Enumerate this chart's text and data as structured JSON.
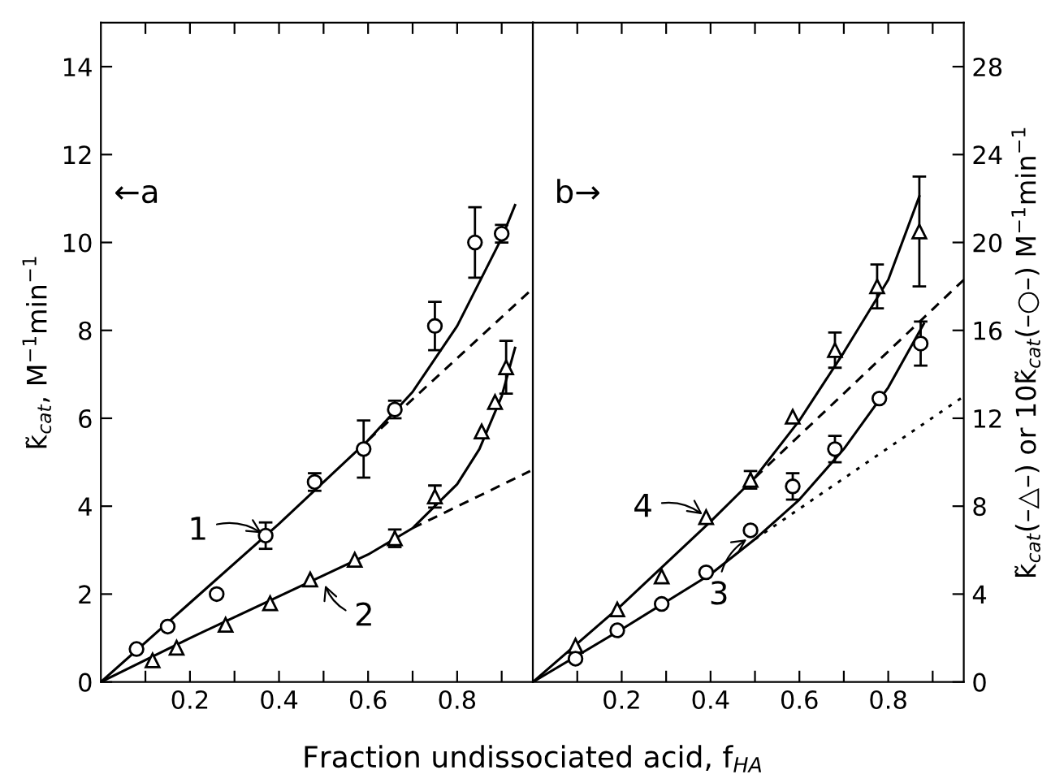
{
  "chart_data": [
    {
      "type": "scatter",
      "xlabel": "Fraction undissociated acid, f$_{HA}$",
      "ylabel": "k̃$_{cat}$, M$^{−1}$min$^{−1}$",
      "xlim": [
        0,
        0.97
      ],
      "ylim": [
        0,
        15
      ],
      "xticks": [
        {
          "value": 0.1,
          "label": null
        },
        0.2,
        {
          "value": 0.3,
          "label": null
        },
        0.4,
        {
          "value": 0.5,
          "label": null
        },
        0.6,
        {
          "value": 0.7,
          "label": null
        },
        0.8,
        {
          "value": 0.9,
          "label": null
        }
      ],
      "yticks": [
        0,
        2,
        4,
        6,
        8,
        10,
        12,
        14
      ],
      "grid": false,
      "legend": false,
      "annotations": [
        "←a",
        {
          "text": "1",
          "x": 0.37,
          "y": 3.33
        },
        {
          "text": "2",
          "x": 0.5,
          "y": 2.3
        }
      ],
      "series": [
        {
          "color": "#000000",
          "marker": "circle",
          "x": [
            0.08,
            0.15,
            0.26,
            0.37,
            0.48,
            0.59,
            0.66,
            0.75,
            0.84,
            0.9
          ],
          "values": [
            0.75,
            1.26,
            2.0,
            3.33,
            4.55,
            5.3,
            6.2,
            8.1,
            10.0,
            10.2
          ],
          "errors": [
            null,
            null,
            null,
            0.3,
            0.2,
            0.65,
            0.2,
            0.55,
            0.8,
            0.2
          ]
        },
        {
          "color": "#000000",
          "marker": "triangle",
          "x": [
            0.116,
            0.17,
            0.28,
            0.38,
            0.47,
            0.57,
            0.66,
            0.75,
            0.855,
            0.885,
            0.91
          ],
          "values": [
            0.49,
            0.78,
            1.3,
            1.79,
            2.33,
            2.78,
            3.27,
            4.22,
            5.7,
            6.37,
            7.16
          ],
          "errors": [
            null,
            null,
            null,
            null,
            null,
            null,
            0.2,
            0.25,
            null,
            null,
            0.6
          ]
        },
        {
          "type": "line",
          "color": "#000000",
          "line_style": "solid",
          "x": [
            0,
            0.2,
            0.4,
            0.6,
            0.7,
            0.8,
            0.9,
            0.93
          ],
          "values": [
            0,
            1.8,
            3.6,
            5.5,
            6.6,
            8.1,
            10.1,
            10.85
          ]
        },
        {
          "type": "line",
          "color": "#000000",
          "line_style": "dashed",
          "x": [
            0.6,
            0.964
          ],
          "values": [
            5.5,
            8.9
          ]
        },
        {
          "type": "line",
          "color": "#000000",
          "line_style": "solid",
          "x": [
            0,
            0.2,
            0.4,
            0.6,
            0.7,
            0.8,
            0.85,
            0.9,
            0.93
          ],
          "values": [
            0,
            1.0,
            1.95,
            2.9,
            3.5,
            4.5,
            5.3,
            6.5,
            7.6
          ]
        },
        {
          "type": "line",
          "color": "#000000",
          "line_style": "dashed",
          "x": [
            0.7,
            0.964
          ],
          "values": [
            3.5,
            4.8
          ]
        }
      ]
    },
    {
      "type": "scatter",
      "ylabel": "k̃$_{cat}$(–△–) or 10k̃$_{cat}$(–○–) M$^{−1}$min$^{−1}$",
      "xlim": [
        0,
        0.97
      ],
      "ylim": [
        0,
        30
      ],
      "xticks": [
        {
          "value": 0.1,
          "label": null
        },
        0.2,
        {
          "value": 0.3,
          "label": null
        },
        0.4,
        {
          "value": 0.5,
          "label": null
        },
        0.6,
        {
          "value": 0.7,
          "label": null
        },
        0.8,
        {
          "value": 0.9,
          "label": null
        }
      ],
      "yticks": [
        0,
        4,
        8,
        12,
        16,
        20,
        24,
        28
      ],
      "grid": false,
      "legend": false,
      "annotations": [
        "b→",
        {
          "text": "4",
          "x": 0.39,
          "y": 7.5
        },
        {
          "text": "3",
          "x": 0.49,
          "y": 6.6
        }
      ],
      "series": [
        {
          "color": "#000000",
          "marker": "triangle",
          "x": [
            0.096,
            0.19,
            0.29,
            0.39,
            0.49,
            0.585,
            0.68,
            0.775,
            0.87
          ],
          "values": [
            1.65,
            3.3,
            4.8,
            7.5,
            9.2,
            12.07,
            15.1,
            18.0,
            20.5
          ],
          "errors": [
            null,
            null,
            null,
            null,
            0.4,
            null,
            0.8,
            1.0,
            2.5
          ]
        },
        {
          "color": "#000000",
          "marker": "circle",
          "x": [
            0.096,
            0.19,
            0.29,
            0.39,
            0.49,
            0.585,
            0.68,
            0.78,
            0.873
          ],
          "values": [
            1.06,
            2.35,
            3.55,
            4.99,
            6.9,
            8.9,
            10.6,
            12.9,
            15.4
          ],
          "errors": [
            null,
            null,
            null,
            null,
            null,
            0.6,
            0.6,
            null,
            1.0
          ]
        },
        {
          "type": "line",
          "color": "#000000",
          "line_style": "solid",
          "x": [
            0,
            0.2,
            0.4,
            0.5,
            0.6,
            0.7,
            0.8,
            0.87
          ],
          "values": [
            0,
            3.5,
            7.3,
            9.3,
            11.9,
            15.0,
            18.3,
            22.1
          ]
        },
        {
          "type": "line",
          "color": "#000000",
          "line_style": "dashed",
          "x": [
            0.5,
            0.97
          ],
          "values": [
            9.3,
            18.3
          ]
        },
        {
          "type": "line",
          "color": "#000000",
          "line_style": "solid",
          "x": [
            0,
            0.2,
            0.4,
            0.5,
            0.6,
            0.7,
            0.8,
            0.88
          ],
          "values": [
            0,
            2.4,
            4.9,
            6.5,
            8.3,
            10.6,
            13.4,
            16.3
          ]
        },
        {
          "type": "line",
          "color": "#000000",
          "line_style": "dotted",
          "x": [
            0.5,
            0.97
          ],
          "values": [
            6.5,
            13.0
          ]
        }
      ]
    }
  ]
}
